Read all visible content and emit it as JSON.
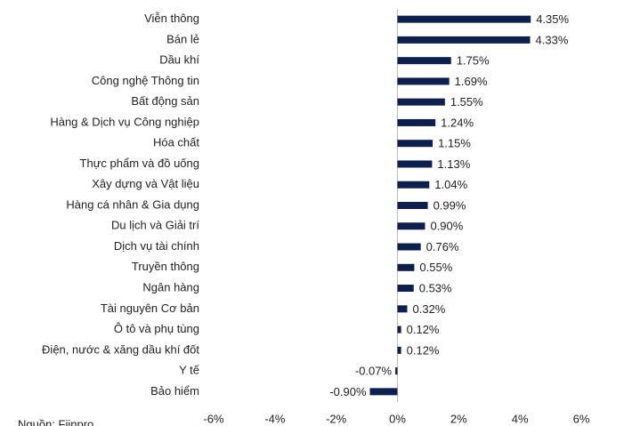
{
  "chart_data": {
    "type": "bar",
    "orientation": "horizontal",
    "categories": [
      "Viễn thông",
      "Bán lẻ",
      "Dầu khí",
      "Công nghệ Thông tin",
      "Bất động sản",
      "Hàng & Dịch vụ Công nghiệp",
      "Hóa chất",
      "Thực phẩm và đồ uống",
      "Xây dựng và Vật liệu",
      "Hàng cá nhân & Gia dụng",
      "Du lịch và Giải trí",
      "Dịch vụ tài chính",
      "Truyền thông",
      "Ngân hàng",
      "Tài nguyên Cơ bản",
      "Ô tô và phụ tùng",
      "Điện, nước & xăng dầu khí đốt",
      "Y tế",
      "Bảo hiểm"
    ],
    "values": [
      4.35,
      4.33,
      1.75,
      1.69,
      1.55,
      1.24,
      1.15,
      1.13,
      1.04,
      0.99,
      0.9,
      0.76,
      0.55,
      0.53,
      0.32,
      0.12,
      0.12,
      -0.07,
      -0.9
    ],
    "value_labels": [
      "4.35%",
      "4.33%",
      "1.75%",
      "1.69%",
      "1.55%",
      "1.24%",
      "1.15%",
      "1.13%",
      "1.04%",
      "0.99%",
      "0.90%",
      "0.76%",
      "0.55%",
      "0.53%",
      "0.32%",
      "0.12%",
      "0.12%",
      "-0.07%",
      "-0.90%"
    ],
    "color": "#0d1f4e",
    "xlim": [
      -6,
      6
    ],
    "xticks": [
      {
        "value": -6,
        "label": "-6%"
      },
      {
        "value": -4,
        "label": "-4%"
      },
      {
        "value": -2,
        "label": "-2%"
      },
      {
        "value": 0,
        "label": "0%"
      },
      {
        "value": 2,
        "label": "2%"
      },
      {
        "value": 4,
        "label": "4%"
      },
      {
        "value": 6,
        "label": "6%"
      }
    ],
    "grid": false,
    "source": "Nguồn: Fiinpro"
  }
}
